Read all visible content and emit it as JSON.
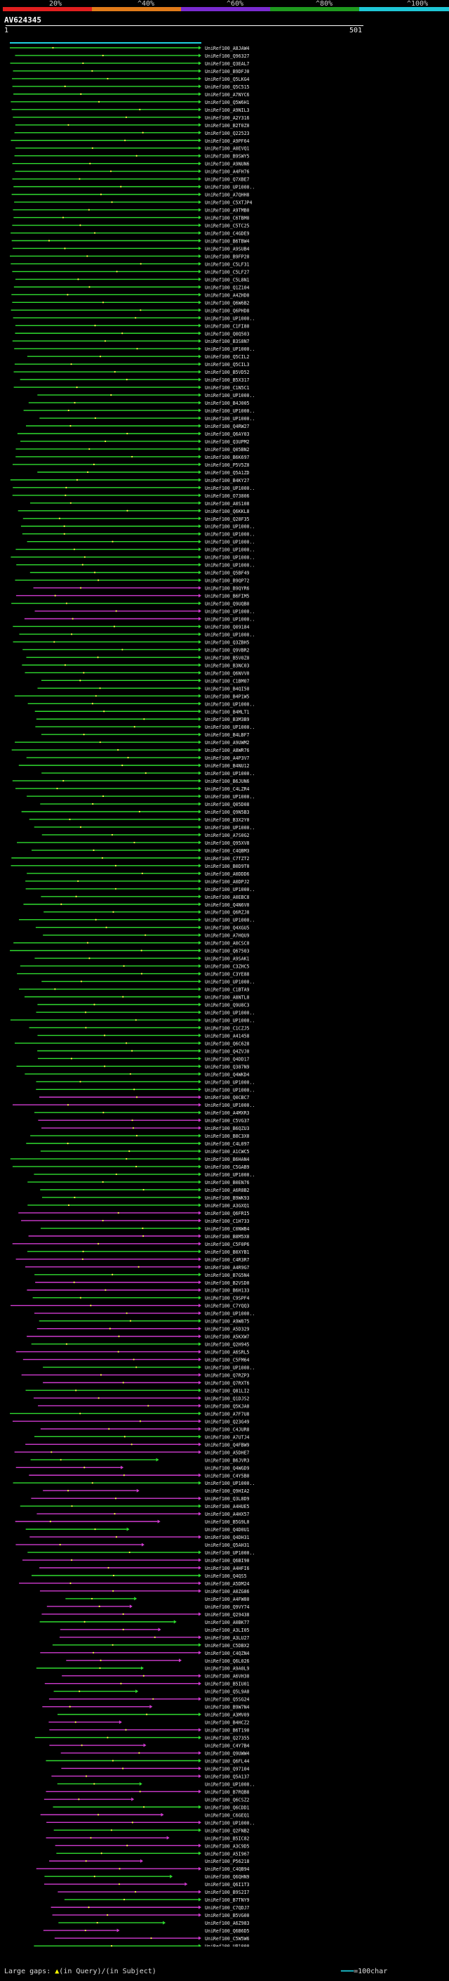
{
  "header": {
    "percent_marks": [
      "20%",
      "^40%",
      "^60%",
      "^80%",
      "^100%"
    ],
    "title": "AV624345",
    "ruler_start": "1",
    "ruler_end": "501"
  },
  "colors": {
    "bar": [
      "#e11f1f",
      "#e07b1a",
      "#7a2bd0",
      "#1f9a1f",
      "#1fc6d6"
    ],
    "green": "#2fdc2f",
    "magenta": "#d03bd0",
    "cyan": "#1fd0e0",
    "mark": "#ffff44"
  },
  "hits": [
    "UniRef100_A8JAW4",
    "UniRef100_Q96327",
    "UniRef100_Q3EAL7",
    "UniRef100_B9DFJ0",
    "UniRef100_Q5LKG4",
    "UniRef100_Q5C515",
    "UniRef100_A7NYC6",
    "UniRef100_Q5W6H1",
    "UniRef100_A9NIL3",
    "UniRef100_A2Y316",
    "UniRef100_B2T0Z0",
    "UniRef100_Q22523",
    "UniRef100_A9PF64",
    "UniRef100_A0EVQ1",
    "UniRef100_B9SWY5",
    "UniRef100_A9NUN6",
    "UniRef100_A4FH76",
    "UniRef100_Q7XBE7",
    "UniRef100_UP1000..",
    "UniRef100_A7QHH8",
    "UniRef100_C5XTJP4",
    "UniRef100_A9TMB0",
    "UniRef100_C6TBM0",
    "UniRef100_C5TC25",
    "UniRef100_C4GDE9",
    "UniRef100_B6TBW4",
    "UniRef100_A9SUB4",
    "UniRef100_B9FP20",
    "UniRef100_C5LF31",
    "UniRef100_C5LF27",
    "UniRef100_C5L8N1",
    "UniRef100_Q1Z104",
    "UniRef100_A4ZHD0",
    "UniRef100_Q6W6B2",
    "UniRef100_Q6PHD8",
    "UniRef100_UP1000..",
    "UniRef100_C1FI80",
    "UniRef100_Q0Q503",
    "UniRef100_B3S8N7",
    "UniRef100_UP1000..",
    "UniRef100_Q5CIL2",
    "UniRef100_Q5CIL3",
    "UniRef100_B5VD52",
    "UniRef100_B5X317",
    "UniRef100_C1N5C1",
    "UniRef100_UP1000..",
    "UniRef100_B4J005",
    "UniRef100_UP1000..",
    "UniRef100_UP1000..",
    "UniRef100_Q4RW27",
    "UniRef100_Q6AY03",
    "UniRef100_Q3UPM2",
    "UniRef100_Q05BN2",
    "UniRef100_B6K697",
    "UniRef100_P5V5Z0",
    "UniRef100_Q5A1ZD",
    "UniRef100_B4KY27",
    "UniRef100_UP1000..",
    "UniRef100_O73806",
    "UniRef100_A0S108",
    "UniRef100_Q6KKL8",
    "UniRef100_Q28F35",
    "UniRef100_UP1000..",
    "UniRef100_UP1000..",
    "UniRef100_UP1000..",
    "UniRef100_UP1000..",
    "UniRef100_UP1000..",
    "UniRef100_UP1000..",
    "UniRef100_Q5BF49",
    "UniRef100_B9QP72",
    "UniRef100_B9QYR6",
    "UniRef100_B6FIM5",
    "UniRef100_Q9UQB0",
    "UniRef100_UP1000..",
    "UniRef100_UP1000..",
    "UniRef100_Q09184",
    "UniRef100_UP1000..",
    "UniRef100_Q3ZBH5",
    "UniRef100_Q9VBR2",
    "UniRef100_B5V0Z0",
    "UniRef100_B3NC03",
    "UniRef100_Q6NVV0",
    "UniRef100_C1BM07",
    "UniRef100_B4QI50",
    "UniRef100_B4P1W5",
    "UniRef100_UP1000..",
    "UniRef100_B4MLT1",
    "UniRef100_B3M3B9",
    "UniRef100_UP1000..",
    "UniRef100_B4LBF7",
    "UniRef100_A9UWM2",
    "UniRef100_A8WR76",
    "UniRef100_A4P3V7",
    "UniRef100_B4NU12",
    "UniRef100_UP1000..",
    "UniRef100_B6JUN6",
    "UniRef100_C4LZR4",
    "UniRef100_UP1000..",
    "UniRef100_Q05D08",
    "UniRef100_Q9N5B3",
    "UniRef100_B3X2Y0",
    "UniRef100_UP1000..",
    "UniRef100_A7S0G2",
    "UniRef100_Q95XV8",
    "UniRef100_C4QBM3",
    "UniRef100_C7TZT2",
    "UniRef100_B0D9T0",
    "UniRef100_A0DDD6",
    "UniRef100_A0DPJ2",
    "UniRef100_UP1000..",
    "UniRef100_A0EBC8",
    "UniRef100_Q4N6V0",
    "UniRef100_Q6RZJ8",
    "UniRef100_UP1000..",
    "UniRef100_Q4XGU5",
    "UniRef100_A7HQU9",
    "UniRef100_A0CSC0",
    "UniRef100_Q67503",
    "UniRef100_A9SAK1",
    "UniRef100_C3ZHC5",
    "UniRef100_C3YE88",
    "UniRef100_UP1000..",
    "UniRef100_C1BTA9",
    "UniRef100_A8NTL0",
    "UniRef100_Q9U8C3",
    "UniRef100_UP1000..",
    "UniRef100_UP1000..",
    "UniRef100_C1CZJ5",
    "UniRef100_A41458",
    "UniRef100_Q6C628",
    "UniRef100_Q4ZVJ0",
    "UniRef100_Q4DD17",
    "UniRef100_Q387N9",
    "UniRef100_Q4WKD4",
    "UniRef100_UP1000..",
    "UniRef100_UP1000..",
    "UniRef100_Q0CBC7",
    "UniRef100_UP1000..",
    "UniRef100_A4MXR3",
    "UniRef100_C5VG37",
    "UniRef100_B6QZU3",
    "UniRef100_B8C3X0",
    "UniRef100_C4L097",
    "UniRef100_A1CWC5",
    "UniRef100_B6HAN4",
    "UniRef100_C5GAB9",
    "UniRef100_UP1000..",
    "UniRef100_B0EN76",
    "UniRef100_A6R8B2",
    "UniRef100_B9WK93",
    "UniRef100_A3GXQ1",
    "UniRef100_Q6FRI5",
    "UniRef100_C1H733",
    "UniRef100_C0NWB4",
    "UniRef100_B8M5X0",
    "UniRef100_C5F0P6",
    "UniRef100_B0XYB1",
    "UniRef100_C4R3R7",
    "UniRef100_A4R9G7",
    "UniRef100_B7G5N4",
    "UniRef100_B2VSD0",
    "UniRef100_B6H133",
    "UniRef100_C9SPF4",
    "UniRef100_C7YQQ3",
    "UniRef100_UP1000..",
    "UniRef100_A9W875",
    "UniRef100_A5D329",
    "UniRef100_A5KXW7",
    "UniRef100_Q2H945",
    "UniRef100_A6SRL5",
    "UniRef100_C5FM64",
    "UniRef100_UP1000..",
    "UniRef100_Q7RZP3",
    "UniRef100_Q7RXT6",
    "UniRef100_Q81LI2",
    "UniRef100_Q1DJS2",
    "UniRef100_Q5KJA0",
    "UniRef100_A7F7U8",
    "UniRef100_Q23G49",
    "UniRef100_C4JUR8",
    "UniRef100_A7UTJ4",
    "UniRef100_Q4FBW9",
    "UniRef100_A5DHE7",
    "UniRef100_B6JVR3",
    "UniRef100_Q4WGD9",
    "UniRef100_C4Y5B0",
    "UniRef100_UP1000..",
    "UniRef100_Q9HIA2",
    "UniRef100_Q3L8D9",
    "UniRef100_A4HUE5",
    "UniRef100_A4HX57",
    "UniRef100_B5G9L0",
    "UniRef100_Q4D0U1",
    "UniRef100_Q4DH31",
    "UniRef100_Q5AH31",
    "UniRef100_UP1000..",
    "UniRef100_Q6BI90",
    "UniRef100_A4HFI6",
    "UniRef100_Q4QS5",
    "UniRef100_A5DM24",
    "UniRef100_A0ZG86",
    "UniRef100_A4FW80",
    "UniRef100_Q9VY74",
    "UniRef100_Q29438",
    "UniRef100_A0BK77",
    "UniRef100_A3LI05",
    "UniRef100_A3LU27",
    "UniRef100_C5DBX2",
    "UniRef100_C4QZN4",
    "UniRef100_Q6L026",
    "UniRef100_A9A0L9",
    "UniRef100_A6VH30",
    "UniRef100_B5IU01",
    "UniRef100_Q5L9A0",
    "UniRef100_Q5SG24",
    "UniRef100_B9W7N4",
    "UniRef100_A3MV09",
    "UniRef100_B4HCZ2",
    "UniRef100_B6T190",
    "UniRef100_Q27355",
    "UniRef100_C4Y7B4",
    "UniRef100_Q9UWW4",
    "UniRef100_Q6FL44",
    "UniRef100_Q97104",
    "UniRef100_Q5A137",
    "UniRef100_UP1000..",
    "UniRef100_B7RQB8",
    "UniRef100_Q6CSZ2",
    "UniRef100_Q6CDD1",
    "UniRef100_C6GEQ1",
    "UniRef100_UP1000..",
    "UniRef100_Q2FNB2",
    "UniRef100_B5IC82",
    "UniRef100_A3C9D5",
    "UniRef100_A5I967",
    "UniRef100_P56218",
    "UniRef100_C4QB94",
    "UniRef100_Q6QHN9",
    "UniRef100_Q6I1T3",
    "UniRef100_B9S2I7",
    "UniRef100_B7TNY9",
    "UniRef100_C7QDJ7",
    "UniRef100_B5VG00",
    "UniRef100_A6Z983",
    "UniRef100_Q6B6D5",
    "UniRef100_C5W5W6",
    "UniRef100_UP1000.."
  ],
  "legend": {
    "prefix": "Large gaps:",
    "query_text": "(in Query)/",
    "subject_text": "(in Subject)",
    "scale_text": "=100char"
  }
}
